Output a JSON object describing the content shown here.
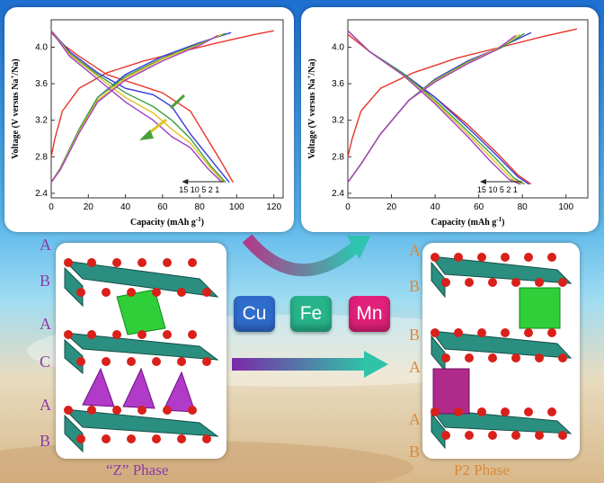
{
  "charts": [
    {
      "type": "line",
      "xlabel": "Capacity (mAh g",
      "xlabel_sup": "-1",
      "xlabel_end": ")",
      "ylabel": "Voltage (V versus Na",
      "ylabel_sup": "+",
      "ylabel_end": "/Na)",
      "xlim": [
        0,
        125
      ],
      "ylim": [
        2.35,
        4.3
      ],
      "xticks": [
        "0",
        "20",
        "40",
        "60",
        "80",
        "100",
        "120"
      ],
      "yticks": [
        "2.4",
        "2.8",
        "3.2",
        "3.6",
        "4.0"
      ],
      "cycle_label": "15 10 5 2 1"
    },
    {
      "type": "line",
      "xlabel": "Capacity (mAh g",
      "xlabel_sup": "-1",
      "xlabel_end": ")",
      "ylabel": "Voltage (V versus Na",
      "ylabel_sup": "+",
      "ylabel_end": "/Na)",
      "xlim": [
        0,
        110
      ],
      "ylim": [
        2.35,
        4.3
      ],
      "xticks": [
        "0",
        "20",
        "40",
        "60",
        "80",
        "100"
      ],
      "yticks": [
        "2.4",
        "2.8",
        "3.2",
        "3.6",
        "4.0"
      ],
      "cycle_label": "15 10 5 2 1"
    }
  ],
  "chart_data": [
    {
      "type": "line",
      "series": [
        {
          "color": "#e8352b",
          "charge": [
            [
              0,
              2.8
            ],
            [
              2,
              3.0
            ],
            [
              6,
              3.3
            ],
            [
              15,
              3.55
            ],
            [
              30,
              3.72
            ],
            [
              50,
              3.85
            ],
            [
              70,
              3.95
            ],
            [
              90,
              4.05
            ],
            [
              110,
              4.14
            ],
            [
              120,
              4.18
            ]
          ],
          "discharge": [
            [
              0,
              4.16
            ],
            [
              5,
              4.05
            ],
            [
              15,
              3.9
            ],
            [
              30,
              3.7
            ],
            [
              45,
              3.6
            ],
            [
              60,
              3.5
            ],
            [
              75,
              3.3
            ],
            [
              90,
              2.8
            ],
            [
              98,
              2.52
            ]
          ]
        },
        {
          "color": "#3a3adc",
          "charge": [
            [
              0,
              2.52
            ],
            [
              5,
              2.68
            ],
            [
              15,
              3.1
            ],
            [
              25,
              3.45
            ],
            [
              40,
              3.7
            ],
            [
              60,
              3.9
            ],
            [
              80,
              4.05
            ],
            [
              97,
              4.16
            ]
          ],
          "discharge": [
            [
              0,
              4.18
            ],
            [
              10,
              3.95
            ],
            [
              25,
              3.72
            ],
            [
              40,
              3.55
            ],
            [
              55,
              3.48
            ],
            [
              65,
              3.35
            ],
            [
              75,
              3.05
            ],
            [
              88,
              2.72
            ],
            [
              96,
              2.52
            ]
          ]
        },
        {
          "color": "#3aa040",
          "charge": [
            [
              0,
              2.52
            ],
            [
              5,
              2.68
            ],
            [
              15,
              3.1
            ],
            [
              25,
              3.45
            ],
            [
              40,
              3.68
            ],
            [
              60,
              3.88
            ],
            [
              80,
              4.04
            ],
            [
              94,
              4.15
            ]
          ],
          "discharge": [
            [
              0,
              4.18
            ],
            [
              10,
              3.93
            ],
            [
              25,
              3.7
            ],
            [
              40,
              3.5
            ],
            [
              55,
              3.35
            ],
            [
              65,
              3.2
            ],
            [
              75,
              3.0
            ],
            [
              86,
              2.7
            ],
            [
              94,
              2.52
            ]
          ]
        },
        {
          "color": "#e0c020",
          "charge": [
            [
              0,
              2.52
            ],
            [
              5,
              2.67
            ],
            [
              15,
              3.08
            ],
            [
              25,
              3.42
            ],
            [
              40,
              3.66
            ],
            [
              60,
              3.87
            ],
            [
              80,
              4.03
            ],
            [
              92,
              4.14
            ]
          ],
          "discharge": [
            [
              0,
              4.18
            ],
            [
              10,
              3.92
            ],
            [
              25,
              3.68
            ],
            [
              40,
              3.45
            ],
            [
              55,
              3.28
            ],
            [
              65,
              3.1
            ],
            [
              75,
              2.95
            ],
            [
              85,
              2.7
            ],
            [
              93,
              2.52
            ]
          ]
        },
        {
          "color": "#a040c0",
          "charge": [
            [
              0,
              2.52
            ],
            [
              5,
              2.66
            ],
            [
              15,
              3.06
            ],
            [
              25,
              3.4
            ],
            [
              40,
              3.64
            ],
            [
              60,
              3.85
            ],
            [
              80,
              4.02
            ],
            [
              90,
              4.13
            ]
          ],
          "discharge": [
            [
              0,
              4.18
            ],
            [
              10,
              3.9
            ],
            [
              25,
              3.65
            ],
            [
              40,
              3.4
            ],
            [
              55,
              3.2
            ],
            [
              65,
              3.02
            ],
            [
              75,
              2.9
            ],
            [
              84,
              2.68
            ],
            [
              92,
              2.52
            ]
          ]
        }
      ]
    },
    {
      "type": "line",
      "series": [
        {
          "color": "#e8352b",
          "charge": [
            [
              0,
              2.8
            ],
            [
              2,
              3.0
            ],
            [
              6,
              3.3
            ],
            [
              15,
              3.55
            ],
            [
              30,
              3.72
            ],
            [
              50,
              3.88
            ],
            [
              70,
              4.0
            ],
            [
              90,
              4.12
            ],
            [
              105,
              4.2
            ]
          ],
          "discharge": [
            [
              0,
              4.14
            ],
            [
              10,
              3.95
            ],
            [
              25,
              3.7
            ],
            [
              40,
              3.45
            ],
            [
              55,
              3.15
            ],
            [
              68,
              2.85
            ],
            [
              78,
              2.6
            ],
            [
              84,
              2.5
            ]
          ]
        },
        {
          "color": "#3a3adc",
          "charge": [
            [
              0,
              2.52
            ],
            [
              6,
              2.72
            ],
            [
              15,
              3.05
            ],
            [
              28,
              3.42
            ],
            [
              40,
              3.65
            ],
            [
              55,
              3.85
            ],
            [
              70,
              4.0
            ],
            [
              84,
              4.16
            ]
          ],
          "discharge": [
            [
              0,
              4.18
            ],
            [
              10,
              3.95
            ],
            [
              25,
              3.72
            ],
            [
              40,
              3.45
            ],
            [
              55,
              3.12
            ],
            [
              68,
              2.82
            ],
            [
              78,
              2.58
            ],
            [
              83,
              2.5
            ]
          ]
        },
        {
          "color": "#3aa040",
          "charge": [
            [
              0,
              2.52
            ],
            [
              6,
              2.72
            ],
            [
              15,
              3.05
            ],
            [
              28,
              3.42
            ],
            [
              40,
              3.64
            ],
            [
              55,
              3.84
            ],
            [
              70,
              3.99
            ],
            [
              81,
              4.15
            ]
          ],
          "discharge": [
            [
              0,
              4.18
            ],
            [
              10,
              3.95
            ],
            [
              25,
              3.72
            ],
            [
              40,
              3.42
            ],
            [
              55,
              3.08
            ],
            [
              67,
              2.8
            ],
            [
              76,
              2.57
            ],
            [
              81,
              2.5
            ]
          ]
        },
        {
          "color": "#e0c020",
          "charge": [
            [
              0,
              2.52
            ],
            [
              6,
              2.72
            ],
            [
              15,
              3.05
            ],
            [
              28,
              3.42
            ],
            [
              40,
              3.63
            ],
            [
              55,
              3.83
            ],
            [
              68,
              3.98
            ],
            [
              79,
              4.14
            ]
          ],
          "discharge": [
            [
              0,
              4.18
            ],
            [
              10,
              3.95
            ],
            [
              25,
              3.7
            ],
            [
              40,
              3.4
            ],
            [
              55,
              3.05
            ],
            [
              66,
              2.78
            ],
            [
              75,
              2.56
            ],
            [
              80,
              2.5
            ]
          ]
        },
        {
          "color": "#a040c0",
          "charge": [
            [
              0,
              2.52
            ],
            [
              6,
              2.72
            ],
            [
              15,
              3.05
            ],
            [
              28,
              3.42
            ],
            [
              40,
              3.62
            ],
            [
              55,
              3.82
            ],
            [
              68,
              3.97
            ],
            [
              77,
              4.13
            ]
          ],
          "discharge": [
            [
              0,
              4.18
            ],
            [
              10,
              3.95
            ],
            [
              25,
              3.7
            ],
            [
              40,
              3.38
            ],
            [
              55,
              3.02
            ],
            [
              65,
              2.76
            ],
            [
              74,
              2.55
            ],
            [
              79,
              2.5
            ]
          ]
        }
      ]
    }
  ],
  "elements": [
    {
      "label": "Cu",
      "color": "#2f6ccc"
    },
    {
      "label": "Fe",
      "color": "#27b48a"
    },
    {
      "label": "Mn",
      "color": "#e0207a"
    }
  ],
  "z_phase": {
    "caption": "“Z” Phase",
    "stacking": [
      "A",
      "B",
      "A",
      "C",
      "A",
      "B"
    ],
    "label_color": "#8a3aa8"
  },
  "p2_phase": {
    "caption": "P2 Phase",
    "stacking": [
      "A",
      "B",
      "B",
      "A",
      "A",
      "B"
    ],
    "label_color": "#d98a3a"
  }
}
